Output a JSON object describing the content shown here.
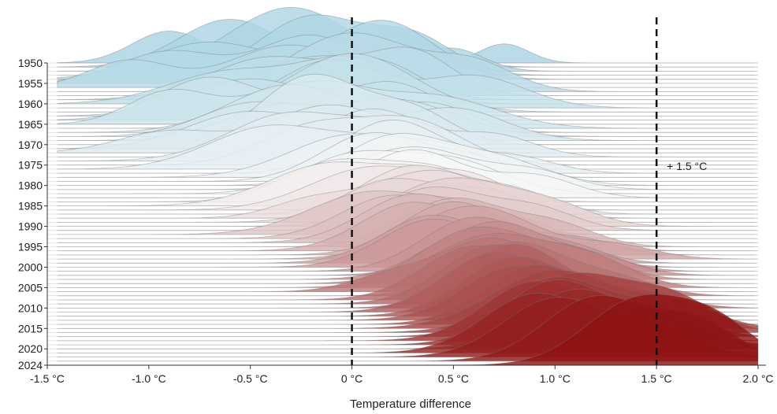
{
  "chart_data": {
    "type": "ridgeline",
    "title": "",
    "xlabel": "Temperature difference",
    "ylabel": "",
    "xlim": [
      -1.5,
      2.05
    ],
    "x_ticks": [
      {
        "value": -1.5,
        "label": "-1.5 °C"
      },
      {
        "value": -1.0,
        "label": "-1.0 °C"
      },
      {
        "value": -0.5,
        "label": "-0.5 °C"
      },
      {
        "value": 0.0,
        "label": "0 °C"
      },
      {
        "value": 0.5,
        "label": "0.5 °C"
      },
      {
        "value": 1.0,
        "label": "1.0 °C"
      },
      {
        "value": 1.5,
        "label": "1.5 °C"
      },
      {
        "value": 2.0,
        "label": "2.0 °C"
      }
    ],
    "y_ticks": [
      "1950",
      "1955",
      "1960",
      "1965",
      "1970",
      "1975",
      "1980",
      "1985",
      "1990",
      "1995",
      "2000",
      "2005",
      "2010",
      "2015",
      "2020",
      "2024"
    ],
    "year_start": 1950,
    "year_end": 2024,
    "reference_lines": [
      {
        "x": 0.0,
        "label": ""
      },
      {
        "x": 1.5,
        "label": "+ 1.5 °C"
      }
    ],
    "color_low": "#a9d4e3",
    "color_mid": "#f7f7f7",
    "color_high": "#8e1414",
    "grid": true,
    "legend": "none",
    "series": [
      {
        "year": 1950,
        "peaks": [
          [
            -0.9,
            0.18,
            0.3
          ],
          [
            -0.1,
            0.22,
            0.25
          ],
          [
            0.75,
            0.12,
            0.18
          ]
        ]
      },
      {
        "year": 1951,
        "peaks": [
          [
            -0.6,
            0.25,
            0.45
          ],
          [
            0.25,
            0.2,
            0.3
          ]
        ]
      },
      {
        "year": 1952,
        "peaks": [
          [
            -0.3,
            0.3,
            0.6
          ],
          [
            0.5,
            0.15,
            0.2
          ]
        ]
      },
      {
        "year": 1953,
        "peaks": [
          [
            -0.2,
            0.25,
            0.55
          ],
          [
            0.3,
            0.2,
            0.35
          ]
        ]
      },
      {
        "year": 1954,
        "peaks": [
          [
            -0.7,
            0.3,
            0.35
          ],
          [
            0.15,
            0.25,
            0.55
          ]
        ]
      },
      {
        "year": 1955,
        "peaks": [
          [
            -0.9,
            0.25,
            0.3
          ],
          [
            -0.2,
            0.25,
            0.45
          ]
        ]
      },
      {
        "year": 1956,
        "peaks": [
          [
            -1.1,
            0.2,
            0.25
          ],
          [
            -0.3,
            0.3,
            0.4
          ]
        ]
      },
      {
        "year": 1957,
        "peaks": [
          [
            0.0,
            0.3,
            0.55
          ],
          [
            0.6,
            0.2,
            0.25
          ]
        ]
      },
      {
        "year": 1958,
        "peaks": [
          [
            -0.2,
            0.25,
            0.35
          ],
          [
            0.3,
            0.2,
            0.4
          ]
        ]
      },
      {
        "year": 1959,
        "peaks": [
          [
            -0.4,
            0.3,
            0.4
          ],
          [
            0.15,
            0.2,
            0.3
          ]
        ]
      },
      {
        "year": 1960,
        "peaks": [
          [
            -0.6,
            0.3,
            0.3
          ],
          [
            0.0,
            0.25,
            0.4
          ]
        ]
      },
      {
        "year": 1961,
        "peaks": [
          [
            -0.1,
            0.25,
            0.45
          ],
          [
            0.6,
            0.25,
            0.3
          ]
        ]
      },
      {
        "year": 1962,
        "peaks": [
          [
            0.0,
            0.3,
            0.55
          ]
        ]
      },
      {
        "year": 1963,
        "peaks": [
          [
            -0.5,
            0.3,
            0.35
          ],
          [
            0.2,
            0.2,
            0.3
          ]
        ]
      },
      {
        "year": 1964,
        "peaks": [
          [
            -0.7,
            0.25,
            0.4
          ],
          [
            0.0,
            0.25,
            0.25
          ]
        ]
      },
      {
        "year": 1965,
        "peaks": [
          [
            -0.9,
            0.2,
            0.3
          ],
          [
            -0.2,
            0.3,
            0.4
          ]
        ]
      },
      {
        "year": 1966,
        "peaks": [
          [
            -0.2,
            0.25,
            0.4
          ],
          [
            0.4,
            0.3,
            0.3
          ]
        ]
      },
      {
        "year": 1967,
        "peaks": [
          [
            -0.3,
            0.3,
            0.45
          ],
          [
            0.4,
            0.2,
            0.25
          ]
        ]
      },
      {
        "year": 1968,
        "peaks": [
          [
            -0.5,
            0.25,
            0.3
          ],
          [
            0.2,
            0.3,
            0.35
          ]
        ]
      },
      {
        "year": 1969,
        "peaks": [
          [
            -0.3,
            0.3,
            0.35
          ],
          [
            0.5,
            0.25,
            0.3
          ]
        ]
      },
      {
        "year": 1970,
        "peaks": [
          [
            -0.2,
            0.25,
            0.65
          ],
          [
            0.3,
            0.2,
            0.3
          ]
        ]
      },
      {
        "year": 1971,
        "peaks": [
          [
            -0.5,
            0.3,
            0.35
          ],
          [
            0.1,
            0.2,
            0.3
          ]
        ]
      },
      {
        "year": 1972,
        "peaks": [
          [
            -0.9,
            0.25,
            0.2
          ],
          [
            -0.1,
            0.3,
            0.45
          ]
        ]
      },
      {
        "year": 1973,
        "peaks": [
          [
            0.1,
            0.25,
            0.45
          ],
          [
            0.7,
            0.2,
            0.2
          ]
        ]
      },
      {
        "year": 1974,
        "peaks": [
          [
            -0.3,
            0.3,
            0.45
          ],
          [
            0.2,
            0.2,
            0.25
          ]
        ]
      },
      {
        "year": 1975,
        "peaks": [
          [
            -0.2,
            0.25,
            0.35
          ],
          [
            0.3,
            0.25,
            0.4
          ]
        ]
      },
      {
        "year": 1976,
        "peaks": [
          [
            -0.4,
            0.3,
            0.4
          ],
          [
            0.2,
            0.25,
            0.25
          ]
        ]
      },
      {
        "year": 1977,
        "peaks": [
          [
            0.2,
            0.25,
            0.5
          ],
          [
            0.8,
            0.2,
            0.15
          ]
        ]
      },
      {
        "year": 1978,
        "peaks": [
          [
            0.0,
            0.3,
            0.4
          ],
          [
            0.5,
            0.2,
            0.2
          ]
        ]
      },
      {
        "year": 1979,
        "peaks": [
          [
            0.1,
            0.25,
            0.45
          ],
          [
            0.6,
            0.2,
            0.2
          ]
        ]
      },
      {
        "year": 1980,
        "peaks": [
          [
            0.2,
            0.25,
            0.45
          ],
          [
            0.7,
            0.25,
            0.25
          ]
        ]
      },
      {
        "year": 1981,
        "peaks": [
          [
            0.3,
            0.3,
            0.4
          ],
          [
            0.9,
            0.2,
            0.15
          ]
        ]
      },
      {
        "year": 1982,
        "peaks": [
          [
            0.0,
            0.25,
            0.35
          ],
          [
            0.5,
            0.25,
            0.3
          ]
        ]
      },
      {
        "year": 1983,
        "peaks": [
          [
            0.3,
            0.25,
            0.45
          ],
          [
            0.9,
            0.2,
            0.2
          ]
        ]
      },
      {
        "year": 1984,
        "peaks": [
          [
            -0.1,
            0.25,
            0.35
          ],
          [
            0.4,
            0.25,
            0.3
          ]
        ]
      },
      {
        "year": 1985,
        "peaks": [
          [
            -0.1,
            0.3,
            0.4
          ],
          [
            0.4,
            0.2,
            0.25
          ]
        ]
      },
      {
        "year": 1986,
        "peaks": [
          [
            0.1,
            0.3,
            0.4
          ],
          [
            0.6,
            0.2,
            0.25
          ]
        ]
      },
      {
        "year": 1987,
        "peaks": [
          [
            0.3,
            0.25,
            0.45
          ],
          [
            0.8,
            0.2,
            0.2
          ]
        ]
      },
      {
        "year": 1988,
        "peaks": [
          [
            0.4,
            0.3,
            0.45
          ],
          [
            -0.2,
            0.2,
            0.15
          ]
        ]
      },
      {
        "year": 1989,
        "peaks": [
          [
            0.2,
            0.25,
            0.4
          ],
          [
            0.7,
            0.2,
            0.25
          ]
        ]
      },
      {
        "year": 1990,
        "peaks": [
          [
            0.5,
            0.3,
            0.45
          ],
          [
            1.0,
            0.2,
            0.15
          ]
        ]
      },
      {
        "year": 1991,
        "peaks": [
          [
            0.4,
            0.25,
            0.4
          ],
          [
            0.9,
            0.2,
            0.2
          ]
        ]
      },
      {
        "year": 1992,
        "peaks": [
          [
            0.1,
            0.3,
            0.4
          ],
          [
            0.6,
            0.2,
            0.2
          ]
        ]
      },
      {
        "year": 1993,
        "peaks": [
          [
            0.2,
            0.25,
            0.4
          ],
          [
            0.7,
            0.2,
            0.2
          ]
        ]
      },
      {
        "year": 1994,
        "peaks": [
          [
            0.3,
            0.25,
            0.45
          ],
          [
            0.8,
            0.2,
            0.2
          ]
        ]
      },
      {
        "year": 1995,
        "peaks": [
          [
            0.5,
            0.25,
            0.45
          ],
          [
            1.0,
            0.2,
            0.2
          ]
        ]
      },
      {
        "year": 1996,
        "peaks": [
          [
            0.3,
            0.25,
            0.45
          ],
          [
            0.9,
            0.25,
            0.15
          ]
        ]
      },
      {
        "year": 1997,
        "peaks": [
          [
            0.5,
            0.25,
            0.5
          ],
          [
            1.1,
            0.2,
            0.15
          ]
        ]
      },
      {
        "year": 1998,
        "peaks": [
          [
            0.6,
            0.3,
            0.5
          ],
          [
            1.3,
            0.2,
            0.12
          ]
        ]
      },
      {
        "year": 1999,
        "peaks": [
          [
            0.4,
            0.25,
            0.45
          ],
          [
            1.0,
            0.2,
            0.2
          ]
        ]
      },
      {
        "year": 2000,
        "peaks": [
          [
            0.4,
            0.25,
            0.45
          ],
          [
            1.0,
            0.2,
            0.2
          ]
        ]
      },
      {
        "year": 2001,
        "peaks": [
          [
            0.6,
            0.25,
            0.5
          ],
          [
            1.1,
            0.2,
            0.2
          ]
        ]
      },
      {
        "year": 2002,
        "peaks": [
          [
            0.7,
            0.25,
            0.5
          ],
          [
            1.2,
            0.2,
            0.15
          ]
        ]
      },
      {
        "year": 2003,
        "peaks": [
          [
            0.6,
            0.25,
            0.45
          ],
          [
            1.1,
            0.2,
            0.25
          ]
        ]
      },
      {
        "year": 2004,
        "peaks": [
          [
            0.6,
            0.25,
            0.5
          ],
          [
            1.0,
            0.2,
            0.2
          ]
        ]
      },
      {
        "year": 2005,
        "peaks": [
          [
            0.7,
            0.3,
            0.5
          ],
          [
            1.2,
            0.2,
            0.2
          ]
        ]
      },
      {
        "year": 2006,
        "peaks": [
          [
            0.7,
            0.25,
            0.5
          ],
          [
            0.2,
            0.2,
            0.15
          ]
        ]
      },
      {
        "year": 2007,
        "peaks": [
          [
            0.8,
            0.25,
            0.5
          ],
          [
            1.3,
            0.2,
            0.15
          ]
        ]
      },
      {
        "year": 2008,
        "peaks": [
          [
            0.6,
            0.25,
            0.5
          ],
          [
            1.1,
            0.2,
            0.2
          ]
        ]
      },
      {
        "year": 2009,
        "peaks": [
          [
            0.7,
            0.25,
            0.55
          ],
          [
            1.2,
            0.2,
            0.15
          ]
        ]
      },
      {
        "year": 2010,
        "peaks": [
          [
            0.8,
            0.25,
            0.6
          ],
          [
            1.4,
            0.2,
            0.15
          ]
        ]
      },
      {
        "year": 2011,
        "peaks": [
          [
            0.7,
            0.25,
            0.55
          ],
          [
            1.2,
            0.2,
            0.2
          ]
        ]
      },
      {
        "year": 2012,
        "peaks": [
          [
            0.8,
            0.25,
            0.55
          ],
          [
            1.3,
            0.2,
            0.2
          ]
        ]
      },
      {
        "year": 2013,
        "peaks": [
          [
            0.8,
            0.25,
            0.5
          ],
          [
            1.3,
            0.2,
            0.25
          ]
        ]
      },
      {
        "year": 2014,
        "peaks": [
          [
            0.9,
            0.25,
            0.55
          ],
          [
            1.4,
            0.2,
            0.2
          ]
        ]
      },
      {
        "year": 2015,
        "peaks": [
          [
            1.0,
            0.3,
            0.55
          ],
          [
            1.6,
            0.2,
            0.2
          ]
        ]
      },
      {
        "year": 2016,
        "peaks": [
          [
            1.1,
            0.3,
            0.55
          ],
          [
            1.6,
            0.2,
            0.25
          ]
        ]
      },
      {
        "year": 2017,
        "peaks": [
          [
            1.0,
            0.25,
            0.55
          ],
          [
            1.5,
            0.2,
            0.25
          ]
        ]
      },
      {
        "year": 2018,
        "peaks": [
          [
            0.9,
            0.25,
            0.55
          ],
          [
            1.4,
            0.2,
            0.25
          ]
        ]
      },
      {
        "year": 2019,
        "peaks": [
          [
            1.0,
            0.25,
            0.6
          ],
          [
            1.5,
            0.2,
            0.25
          ]
        ]
      },
      {
        "year": 2020,
        "peaks": [
          [
            1.1,
            0.25,
            0.55
          ],
          [
            1.6,
            0.2,
            0.25
          ]
        ]
      },
      {
        "year": 2021,
        "peaks": [
          [
            0.9,
            0.25,
            0.55
          ],
          [
            1.4,
            0.2,
            0.25
          ]
        ]
      },
      {
        "year": 2022,
        "peaks": [
          [
            1.0,
            0.25,
            0.55
          ],
          [
            1.5,
            0.2,
            0.25
          ]
        ]
      },
      {
        "year": 2023,
        "peaks": [
          [
            1.2,
            0.25,
            0.6
          ],
          [
            1.7,
            0.2,
            0.35
          ]
        ]
      },
      {
        "year": 2024,
        "peaks": [
          [
            1.4,
            0.25,
            0.6
          ],
          [
            1.8,
            0.2,
            0.35
          ]
        ]
      }
    ]
  }
}
